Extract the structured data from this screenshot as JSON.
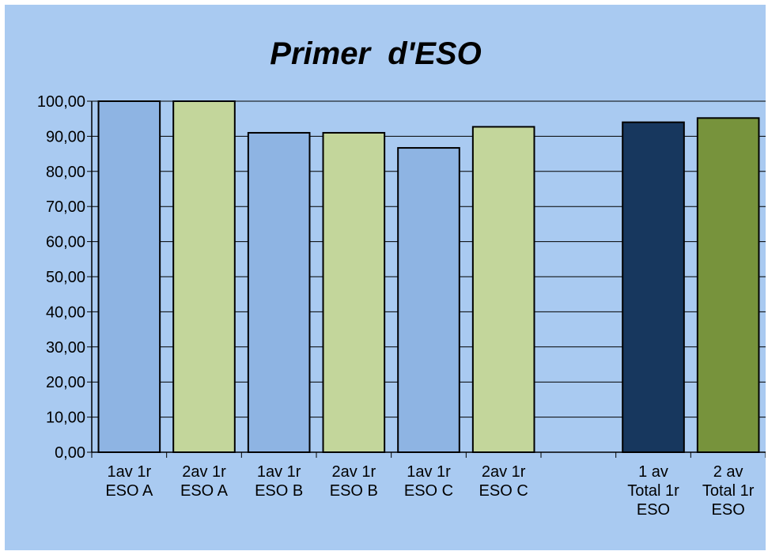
{
  "chart_data": {
    "type": "bar",
    "title": "Primer  d'ESO",
    "xlabel": "",
    "ylabel": "",
    "ylim": [
      0,
      100
    ],
    "y_ticks": [
      "0,00",
      "10,00",
      "20,00",
      "30,00",
      "40,00",
      "50,00",
      "60,00",
      "70,00",
      "80,00",
      "90,00",
      "100,00"
    ],
    "grid": "horizontal",
    "legend": "none",
    "categories": [
      [
        "1av 1r",
        "ESO A"
      ],
      [
        "2av 1r",
        "ESO A"
      ],
      [
        "1av 1r",
        "ESO B"
      ],
      [
        "2av 1r",
        "ESO B"
      ],
      [
        "1av 1r",
        "ESO C"
      ],
      [
        "2av 1r",
        "ESO C"
      ],
      [
        ""
      ],
      [
        "1 av",
        "Total 1r",
        "ESO"
      ],
      [
        "2 av",
        "Total 1r",
        "ESO"
      ]
    ],
    "values": [
      100,
      100,
      91,
      91,
      86.7,
      92.7,
      null,
      94,
      95.2
    ],
    "bar_colors": [
      "#8eb4e3",
      "#c3d69b",
      "#8eb4e3",
      "#c3d69b",
      "#8eb4e3",
      "#c3d69b",
      null,
      "#17375e",
      "#77933c"
    ],
    "background_color": "#a9caf1"
  }
}
